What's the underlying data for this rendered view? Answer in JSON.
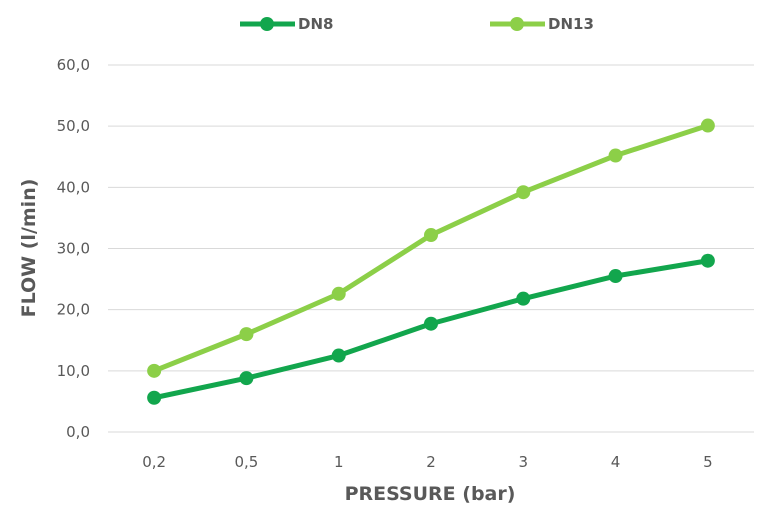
{
  "chart_data": {
    "type": "line",
    "categories": [
      "0,2",
      "0,5",
      "1",
      "2",
      "3",
      "4",
      "5"
    ],
    "series": [
      {
        "name": "DN8",
        "color": "#12a64d",
        "values": [
          5.6,
          8.8,
          12.5,
          17.7,
          21.8,
          25.5,
          28.0
        ]
      },
      {
        "name": "DN13",
        "color": "#8ccf48",
        "values": [
          10.0,
          16.0,
          22.6,
          32.2,
          39.2,
          45.2,
          50.1
        ]
      }
    ],
    "ylim": [
      0,
      60
    ],
    "yticks": [
      0,
      10,
      20,
      30,
      40,
      50,
      60
    ],
    "ytick_labels": [
      "0,0",
      "10,0",
      "20,0",
      "30,0",
      "40,0",
      "50,0",
      "60,0"
    ],
    "xlabel": "PRESSURE (bar)",
    "ylabel": "FLOW (l/min)",
    "grid": "horizontal",
    "legend": "top"
  }
}
